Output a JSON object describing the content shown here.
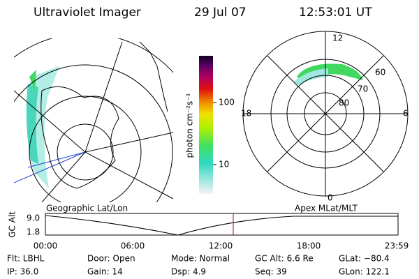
{
  "header": {
    "title": "Ultraviolet Imager",
    "date": "29 Jul 07",
    "time": "12:53:01 UT"
  },
  "colorbar": {
    "unit": "photon cm⁻²s⁻¹",
    "ticks": [
      "100",
      "10"
    ]
  },
  "polar": {
    "labels": {
      "top": "12",
      "bottom": "0",
      "left": "18",
      "right": "6"
    },
    "rings": [
      "60",
      "70",
      "80"
    ]
  },
  "timeline": {
    "y_label": "GC Alt",
    "y_ticks": [
      "9.0",
      "1.8"
    ],
    "left_title": "Geographic Lat/Lon",
    "right_title": "Apex MLat/MLT",
    "x_ticks": [
      "00:00",
      "06:00",
      "12:00",
      "18:00",
      "23:59"
    ]
  },
  "status": {
    "rows": [
      [
        "Flt: LBHL",
        "Door: Open",
        "Mode: Normal",
        "GC Alt: 6.6 Re",
        "GLat: −80.4"
      ],
      [
        "IP: 36.0",
        "Gain: 14",
        "Dsp: 4.9",
        "Seq: 39",
        "GLon: 122.1"
      ]
    ]
  }
}
